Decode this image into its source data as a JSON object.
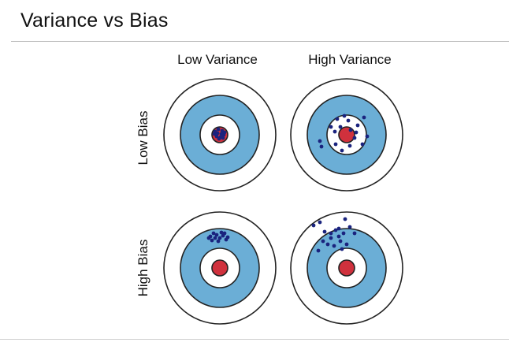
{
  "title": "Variance vs Bias",
  "columns": [
    {
      "label": "Low Variance"
    },
    {
      "label": "High Variance"
    }
  ],
  "rows": [
    {
      "label": "Low Bias"
    },
    {
      "label": "High Bias"
    }
  ],
  "colors": {
    "bullseye": "#d0313d",
    "blue_ring": "#6baed6",
    "ring_stroke": "#222222",
    "dots": "#1a237e"
  },
  "targets": [
    {
      "bias": "low",
      "variance": "low",
      "points": [
        [
          -6,
          -4
        ],
        [
          -2,
          -7
        ],
        [
          3,
          -5
        ],
        [
          5,
          0
        ],
        [
          1,
          3
        ],
        [
          -4,
          2
        ],
        [
          -7,
          -1
        ],
        [
          2,
          -1
        ],
        [
          -1,
          5
        ],
        [
          6,
          -3
        ],
        [
          -3,
          -2
        ],
        [
          4,
          4
        ]
      ]
    },
    {
      "bias": "low",
      "variance": "high",
      "points": [
        [
          -34,
          8
        ],
        [
          -32,
          15
        ],
        [
          -12,
          -20
        ],
        [
          -8,
          -10
        ],
        [
          -15,
          -4
        ],
        [
          -3,
          -24
        ],
        [
          2,
          -18
        ],
        [
          5,
          -6
        ],
        [
          10,
          4
        ],
        [
          14,
          -12
        ],
        [
          22,
          -22
        ],
        [
          26,
          2
        ],
        [
          20,
          12
        ],
        [
          -6,
          20
        ],
        [
          -14,
          12
        ],
        [
          4,
          14
        ],
        [
          -20,
          -10
        ],
        [
          12,
          -3
        ]
      ]
    },
    {
      "bias": "high",
      "variance": "low",
      "points": [
        [
          -12,
          -40
        ],
        [
          -8,
          -44
        ],
        [
          -4,
          -42
        ],
        [
          0,
          -38
        ],
        [
          4,
          -41
        ],
        [
          8,
          -36
        ],
        [
          -10,
          -35
        ],
        [
          -2,
          -34
        ],
        [
          6,
          -44
        ],
        [
          10,
          -39
        ],
        [
          -6,
          -38
        ],
        [
          2,
          -45
        ],
        [
          -14,
          -38
        ]
      ]
    },
    {
      "bias": "high",
      "variance": "high",
      "points": [
        [
          -42,
          -54
        ],
        [
          -34,
          -58
        ],
        [
          -28,
          -46
        ],
        [
          -20,
          -38
        ],
        [
          -14,
          -48
        ],
        [
          -10,
          -40
        ],
        [
          -4,
          -44
        ],
        [
          0,
          -30
        ],
        [
          4,
          -52
        ],
        [
          10,
          -44
        ],
        [
          -24,
          -30
        ],
        [
          -16,
          -28
        ],
        [
          -8,
          -34
        ],
        [
          -36,
          -22
        ],
        [
          -30,
          -34
        ],
        [
          -2,
          -62
        ],
        [
          -10,
          -50
        ],
        [
          -6,
          -24
        ],
        [
          -20,
          -44
        ]
      ]
    }
  ]
}
